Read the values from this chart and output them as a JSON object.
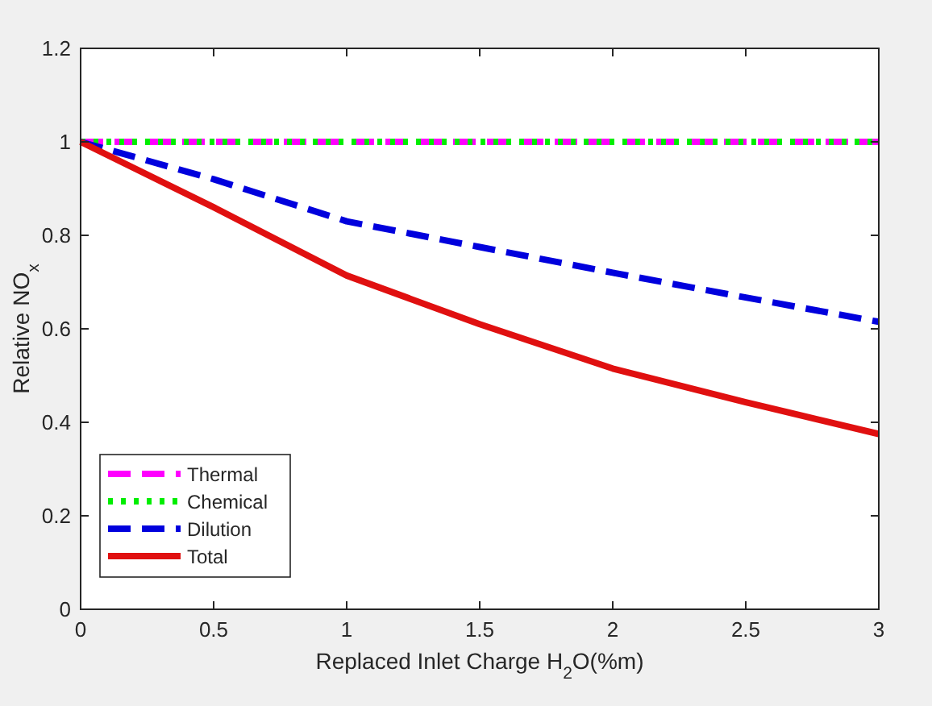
{
  "chart_data": {
    "type": "line",
    "xlabel": "Replaced Inlet Charge H$_{2}$O(%m)",
    "ylabel": "Relative NO$_{x}$",
    "x": [
      0,
      0.5,
      1,
      1.5,
      2,
      2.5,
      3
    ],
    "series": [
      {
        "name": "Thermal",
        "color": "#ff00ff",
        "line_style": "dashed",
        "values": [
          1,
          1,
          1,
          1,
          1,
          1,
          1
        ]
      },
      {
        "name": "Chemical",
        "color": "#00ee00",
        "line_style": "dotted",
        "values": [
          1,
          1,
          1,
          1,
          1,
          1,
          1
        ]
      },
      {
        "name": "Dilution",
        "color": "#0000dd",
        "line_style": "dashed",
        "values": [
          1,
          0.92,
          0.83,
          0.775,
          0.72,
          0.667,
          0.615
        ]
      },
      {
        "name": "Total",
        "color": "#e01010",
        "line_style": "solid",
        "values": [
          1,
          0.86,
          0.714,
          0.61,
          0.515,
          0.443,
          0.375
        ]
      }
    ],
    "xlim": [
      0,
      3
    ],
    "xticks": [
      0,
      0.5,
      1,
      1.5,
      2,
      2.5,
      3
    ],
    "ylim": [
      0,
      1.2
    ],
    "yticks": [
      0,
      0.2,
      0.4,
      0.6,
      0.8,
      1,
      1.2
    ],
    "grid": false,
    "legend": "bottom left",
    "marker": "none"
  }
}
